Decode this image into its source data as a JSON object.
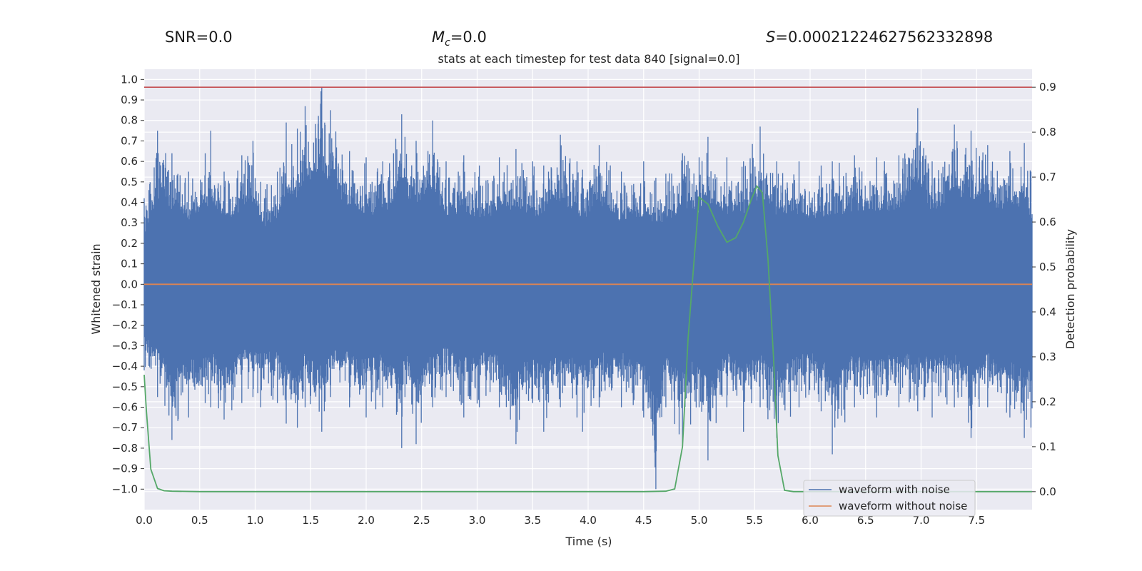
{
  "stats": {
    "snr_label": "SNR=0.0",
    "mc_symbol": "M",
    "mc_subscript": "c",
    "mc_value": "=0.0",
    "s_symbol": "S",
    "s_value": "=0.00021224627562332898"
  },
  "colors": {
    "plot_bg": "#eaeaf2",
    "grid": "#ffffff",
    "noise": "#4c72b0",
    "clean": "#dd8452",
    "prob": "#55a868",
    "threshold": "#c44e52"
  },
  "chart_data": {
    "type": "line",
    "title": "stats at each timestep for test data 840 [signal=0.0]",
    "xlabel": "Time (s)",
    "ylabel": "Whitened strain",
    "y2label": "Detection probability",
    "xlim": [
      0.0,
      8.0
    ],
    "ylim": [
      -1.1,
      1.05
    ],
    "y2lim": [
      -0.04,
      0.94
    ],
    "xticks": [
      0.0,
      0.5,
      1.0,
      1.5,
      2.0,
      2.5,
      3.0,
      3.5,
      4.0,
      4.5,
      5.0,
      5.5,
      6.0,
      6.5,
      7.0,
      7.5
    ],
    "xtick_labels": [
      "0.0",
      "0.5",
      "1.0",
      "1.5",
      "2.0",
      "2.5",
      "3.0",
      "3.5",
      "4.0",
      "4.5",
      "5.0",
      "5.5",
      "6.0",
      "6.5",
      "7.0",
      "7.5"
    ],
    "yticks": [
      1.0,
      0.9,
      0.8,
      0.7,
      0.6,
      0.5,
      0.4,
      0.3,
      0.2,
      0.1,
      0.0,
      -0.1,
      -0.2,
      -0.3,
      -0.4,
      -0.5,
      -0.6,
      -0.7,
      -0.8,
      -0.9,
      -1.0
    ],
    "ytick_labels": [
      "1.0",
      "0.9",
      "0.8",
      "0.7",
      "0.6",
      "0.5",
      "0.4",
      "0.3",
      "0.2",
      "0.1",
      "0.0",
      "−0.1",
      "−0.2",
      "−0.3",
      "−0.4",
      "−0.5",
      "−0.6",
      "−0.7",
      "−0.8",
      "−0.9",
      "−1.0"
    ],
    "y2ticks": [
      0.9,
      0.8,
      0.7,
      0.6,
      0.5,
      0.4,
      0.3,
      0.2,
      0.1,
      0.0
    ],
    "y2tick_labels": [
      "0.9",
      "0.8",
      "0.7",
      "0.6",
      "0.5",
      "0.4",
      "0.3",
      "0.2",
      "0.1",
      "0.0"
    ],
    "threshold": 0.9,
    "series": [
      {
        "name": "waveform with noise",
        "axis": "left",
        "note": "dense whitened noise; envelope peaks sampled",
        "x": [
          0.0,
          0.12,
          0.25,
          0.4,
          0.55,
          0.6,
          0.72,
          0.88,
          0.98,
          1.05,
          1.2,
          1.28,
          1.38,
          1.45,
          1.6,
          1.68,
          1.85,
          2.0,
          2.15,
          2.32,
          2.35,
          2.45,
          2.6,
          2.72,
          2.88,
          3.02,
          3.2,
          3.35,
          3.5,
          3.6,
          3.75,
          3.9,
          3.95,
          4.1,
          4.3,
          4.5,
          4.61,
          4.7,
          4.85,
          5.0,
          5.08,
          5.25,
          5.4,
          5.55,
          5.7,
          5.9,
          6.1,
          6.2,
          6.4,
          6.6,
          6.8,
          6.97,
          7.1,
          7.3,
          7.45,
          7.6,
          7.8,
          7.93,
          7.99
        ],
        "upper": [
          0.42,
          0.75,
          0.64,
          0.55,
          0.64,
          0.75,
          0.55,
          0.63,
          0.7,
          0.5,
          0.55,
          0.79,
          0.76,
          0.87,
          0.96,
          0.85,
          0.65,
          0.62,
          0.6,
          0.83,
          0.72,
          0.7,
          0.8,
          0.6,
          0.63,
          0.58,
          0.62,
          0.66,
          0.6,
          0.58,
          0.73,
          0.6,
          0.56,
          0.68,
          0.55,
          0.6,
          0.52,
          0.54,
          0.64,
          0.62,
          0.72,
          0.62,
          0.6,
          0.77,
          0.6,
          0.6,
          0.58,
          0.6,
          0.63,
          0.62,
          0.63,
          0.86,
          0.6,
          0.78,
          0.75,
          0.68,
          0.65,
          0.69,
          0.55
        ],
        "lower": [
          -0.42,
          -0.55,
          -0.76,
          -0.65,
          -0.58,
          -0.6,
          -0.66,
          -0.58,
          -0.55,
          -0.6,
          -0.58,
          -0.68,
          -0.7,
          -0.6,
          -0.72,
          -0.55,
          -0.6,
          -0.65,
          -0.6,
          -0.8,
          -0.55,
          -0.78,
          -0.6,
          -0.55,
          -0.65,
          -0.6,
          -0.6,
          -0.78,
          -0.58,
          -0.72,
          -0.6,
          -0.65,
          -0.72,
          -0.6,
          -0.6,
          -0.65,
          -1.0,
          -0.6,
          -0.78,
          -0.6,
          -0.86,
          -0.6,
          -0.72,
          -0.6,
          -0.75,
          -0.6,
          -0.62,
          -0.83,
          -0.6,
          -0.65,
          -0.6,
          -0.62,
          -0.65,
          -0.6,
          -0.75,
          -0.6,
          -0.65,
          -0.75,
          -0.7
        ]
      },
      {
        "name": "waveform without noise",
        "axis": "left",
        "x": [
          0.0,
          8.0
        ],
        "y": [
          0.0,
          0.0
        ]
      },
      {
        "name": "Detection probability",
        "axis": "right",
        "x": [
          0.0,
          0.02,
          0.06,
          0.12,
          0.18,
          0.25,
          0.5,
          1.0,
          2.0,
          3.0,
          4.0,
          4.5,
          4.7,
          4.78,
          4.85,
          4.9,
          4.95,
          5.0,
          5.08,
          5.17,
          5.25,
          5.33,
          5.4,
          5.47,
          5.52,
          5.57,
          5.62,
          5.67,
          5.71,
          5.77,
          5.85,
          6.0,
          6.5,
          7.0,
          7.5,
          8.0
        ],
        "y": [
          0.26,
          0.18,
          0.05,
          0.007,
          0.002,
          0.001,
          0.0,
          0.0,
          0.0,
          0.0,
          0.0,
          0.0,
          0.001,
          0.006,
          0.1,
          0.34,
          0.5,
          0.655,
          0.64,
          0.59,
          0.555,
          0.565,
          0.6,
          0.65,
          0.68,
          0.665,
          0.52,
          0.3,
          0.08,
          0.003,
          0.0,
          0.0,
          0.0,
          0.0,
          0.0,
          0.0
        ]
      }
    ],
    "legend": {
      "placement": "lower-right",
      "entries": [
        "waveform with noise",
        "waveform without noise"
      ]
    }
  }
}
